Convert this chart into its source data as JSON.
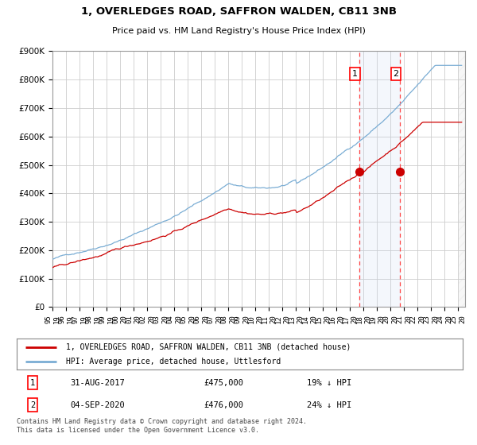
{
  "title": "1, OVERLEDGES ROAD, SAFFRON WALDEN, CB11 3NB",
  "subtitle": "Price paid vs. HM Land Registry's House Price Index (HPI)",
  "ylim": [
    0,
    900000
  ],
  "yticks": [
    0,
    100000,
    200000,
    300000,
    400000,
    500000,
    600000,
    700000,
    800000,
    900000
  ],
  "ytick_labels": [
    "£0",
    "£100K",
    "£200K",
    "£300K",
    "£400K",
    "£500K",
    "£600K",
    "£700K",
    "£800K",
    "£900K"
  ],
  "hpi_color": "#7aadd4",
  "price_color": "#cc0000",
  "sale1_year": 2017.67,
  "sale1_price": 475000,
  "sale2_year": 2020.68,
  "sale2_price": 476000,
  "legend_line1": "1, OVERLEDGES ROAD, SAFFRON WALDEN, CB11 3NB (detached house)",
  "legend_line2": "HPI: Average price, detached house, Uttlesford",
  "ann1_num": "1",
  "ann1_date": "31-AUG-2017",
  "ann1_price": "£475,000",
  "ann1_hpi": "19% ↓ HPI",
  "ann2_num": "2",
  "ann2_date": "04-SEP-2020",
  "ann2_price": "£476,000",
  "ann2_hpi": "24% ↓ HPI",
  "footer": "Contains HM Land Registry data © Crown copyright and database right 2024.\nThis data is licensed under the Open Government Licence v3.0.",
  "bg_color": "#ffffff",
  "grid_color": "#cccccc",
  "shade_color": "#ddeeff"
}
